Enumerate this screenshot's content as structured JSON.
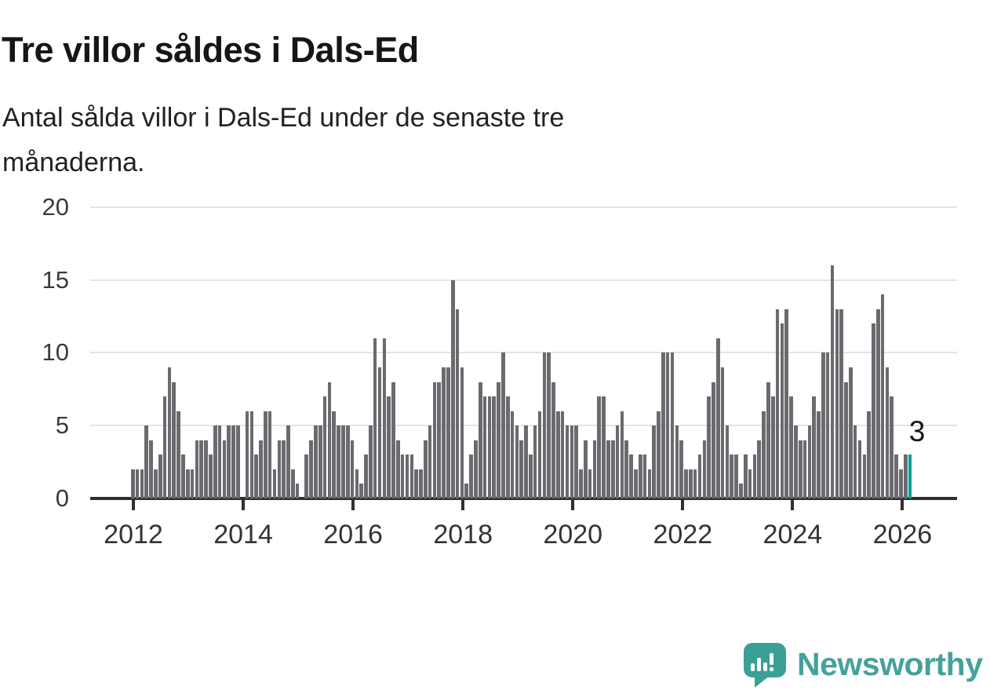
{
  "header": {
    "title": "Tre villor såldes i Dals-Ed",
    "subtitle_line1": "Antal sålda villor i Dals-Ed under de senaste tre",
    "subtitle_line2": "månaderna."
  },
  "annotation": {
    "latest_value_label": "3"
  },
  "branding": {
    "wordmark": "Newsworthy",
    "icon": "newsworthy-chart-speech-bubble-icon"
  },
  "colors": {
    "bar": "#6a6a6f",
    "highlight_bar": "#00a096",
    "axis": "#303030",
    "gridline": "#e4e4e4",
    "title_text": "#161616",
    "axis_text": "#3a3a3a",
    "brand_teal": "#45a29b"
  },
  "chart_data": {
    "type": "bar",
    "title": "Tre villor såldes i Dals-Ed",
    "subtitle": "Antal sålda villor i Dals-Ed under de senaste tre månaderna.",
    "xlabel": "",
    "ylabel": "",
    "frequency": "monthly",
    "start": "2012-01",
    "end": "2026-03",
    "x_tick_labels": [
      "2012",
      "2014",
      "2016",
      "2018",
      "2020",
      "2022",
      "2024",
      "2026"
    ],
    "y_ticks": [
      0,
      5,
      10,
      15,
      20
    ],
    "ylim": [
      0,
      20
    ],
    "grid": "horizontal",
    "legend": "none",
    "highlight_last": true,
    "highlight_color": "#00a096",
    "last_value_annotation": 3,
    "values": [
      2,
      2,
      2,
      5,
      4,
      2,
      3,
      7,
      9,
      8,
      6,
      3,
      2,
      2,
      4,
      4,
      4,
      3,
      5,
      5,
      4,
      5,
      5,
      5,
      0,
      6,
      6,
      3,
      4,
      6,
      6,
      2,
      4,
      4,
      5,
      2,
      1,
      0,
      3,
      4,
      5,
      5,
      7,
      8,
      6,
      5,
      5,
      5,
      4,
      2,
      1,
      3,
      5,
      11,
      9,
      11,
      7,
      8,
      4,
      3,
      3,
      3,
      2,
      2,
      4,
      5,
      8,
      8,
      9,
      9,
      15,
      13,
      9,
      1,
      3,
      4,
      8,
      7,
      7,
      7,
      8,
      10,
      7,
      6,
      5,
      4,
      5,
      3,
      5,
      6,
      10,
      10,
      8,
      6,
      6,
      5,
      5,
      5,
      2,
      4,
      2,
      4,
      7,
      7,
      4,
      4,
      5,
      6,
      4,
      3,
      2,
      3,
      3,
      2,
      5,
      6,
      10,
      10,
      10,
      5,
      4,
      2,
      2,
      2,
      3,
      4,
      7,
      8,
      11,
      9,
      5,
      3,
      3,
      1,
      3,
      2,
      3,
      4,
      6,
      8,
      7,
      13,
      12,
      13,
      7,
      5,
      4,
      4,
      5,
      7,
      6,
      10,
      10,
      16,
      13,
      13,
      8,
      9,
      5,
      4,
      3,
      6,
      12,
      13,
      14,
      9,
      7,
      3,
      2,
      3,
      3
    ]
  }
}
